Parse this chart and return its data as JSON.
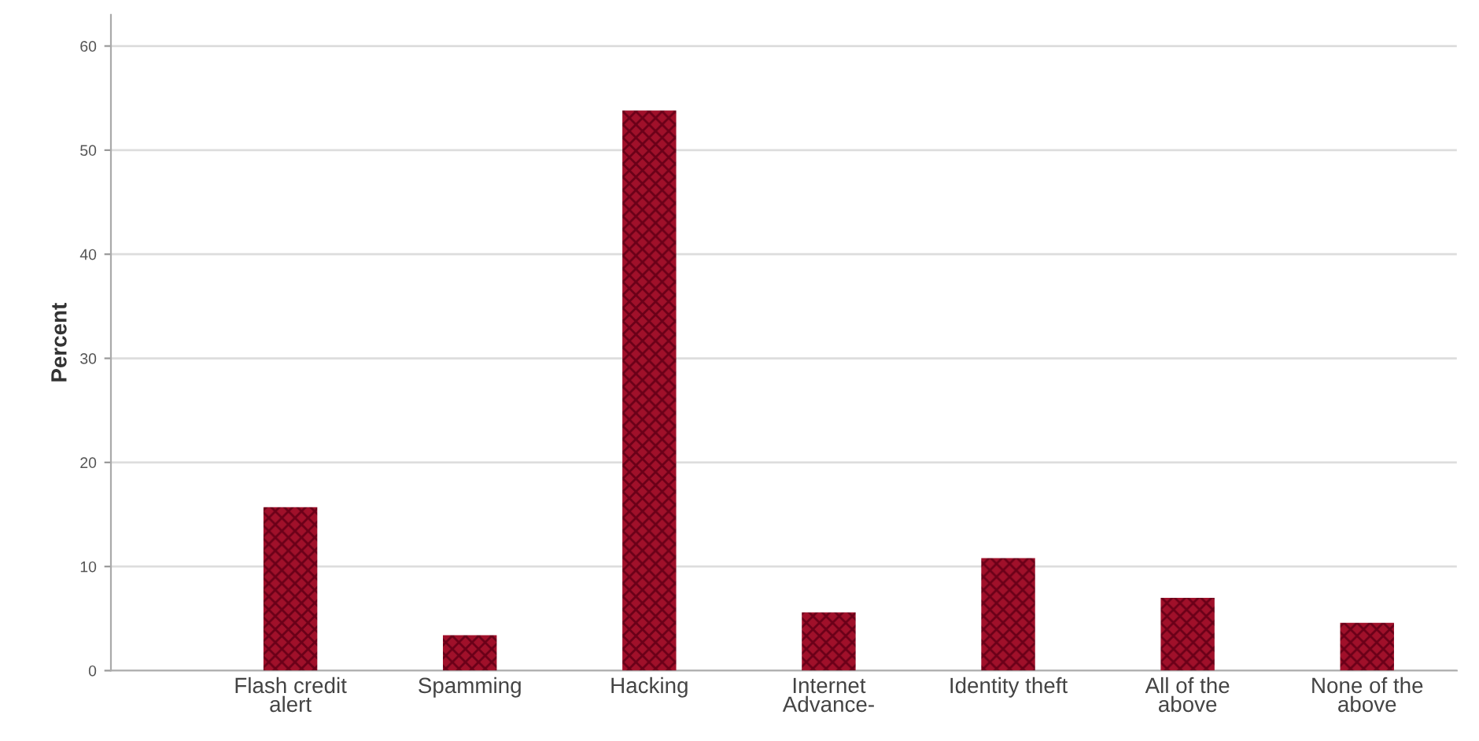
{
  "chart_data": {
    "type": "bar",
    "ylabel": "Percent",
    "categories": [
      "Flash credit alert",
      "Spamming",
      "Hacking",
      "Internet Advance-",
      "Identity theft",
      "All of the above",
      "None of the above"
    ],
    "values": [
      15.7,
      3.4,
      53.8,
      5.6,
      10.8,
      7.0,
      4.6
    ],
    "color": "#a0102a",
    "ylim": [
      0,
      63
    ],
    "yticks": [
      0,
      10,
      20,
      30,
      40,
      50,
      60
    ],
    "grid": "y"
  }
}
